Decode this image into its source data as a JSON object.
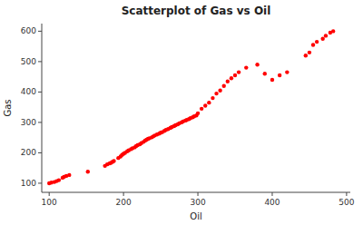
{
  "chart_data": {
    "type": "scatter",
    "title": "Scatterplot of Gas vs Oil",
    "xlabel": "Oil",
    "ylabel": "Gas",
    "x": [
      100,
      103,
      107,
      110,
      113,
      118,
      120,
      123,
      127,
      152,
      175,
      178,
      181,
      183,
      185,
      187,
      193,
      196,
      198,
      200,
      202,
      205,
      207,
      210,
      212,
      215,
      217,
      219,
      222,
      224,
      227,
      229,
      231,
      233,
      235,
      238,
      240,
      242,
      245,
      248,
      250,
      252,
      255,
      257,
      260,
      263,
      265,
      268,
      270,
      273,
      275,
      278,
      280,
      283,
      285,
      288,
      290,
      293,
      295,
      298,
      300,
      305,
      310,
      315,
      320,
      325,
      330,
      335,
      340,
      345,
      350,
      355,
      365,
      380,
      390,
      400,
      410,
      420,
      445,
      450,
      455,
      460,
      468,
      472,
      478,
      482
    ],
    "values": [
      100,
      102,
      104,
      107,
      110,
      118,
      121,
      124,
      127,
      138,
      157,
      162,
      165,
      167,
      170,
      173,
      183,
      188,
      193,
      197,
      200,
      205,
      208,
      212,
      215,
      218,
      222,
      225,
      228,
      232,
      236,
      240,
      243,
      246,
      248,
      251,
      254,
      257,
      260,
      263,
      266,
      268,
      272,
      275,
      278,
      282,
      285,
      288,
      291,
      294,
      297,
      300,
      303,
      306,
      308,
      311,
      314,
      317,
      320,
      323,
      330,
      345,
      355,
      365,
      380,
      395,
      405,
      420,
      435,
      445,
      455,
      465,
      480,
      490,
      460,
      440,
      455,
      465,
      520,
      530,
      555,
      565,
      575,
      585,
      595,
      600
    ],
    "color": "#ff0000",
    "xlim": [
      90,
      505
    ],
    "ylim": [
      70,
      625
    ],
    "xticks": [
      100,
      200,
      300,
      400,
      500
    ],
    "yticks": [
      100,
      200,
      300,
      400,
      500,
      600
    ],
    "grid": false
  }
}
